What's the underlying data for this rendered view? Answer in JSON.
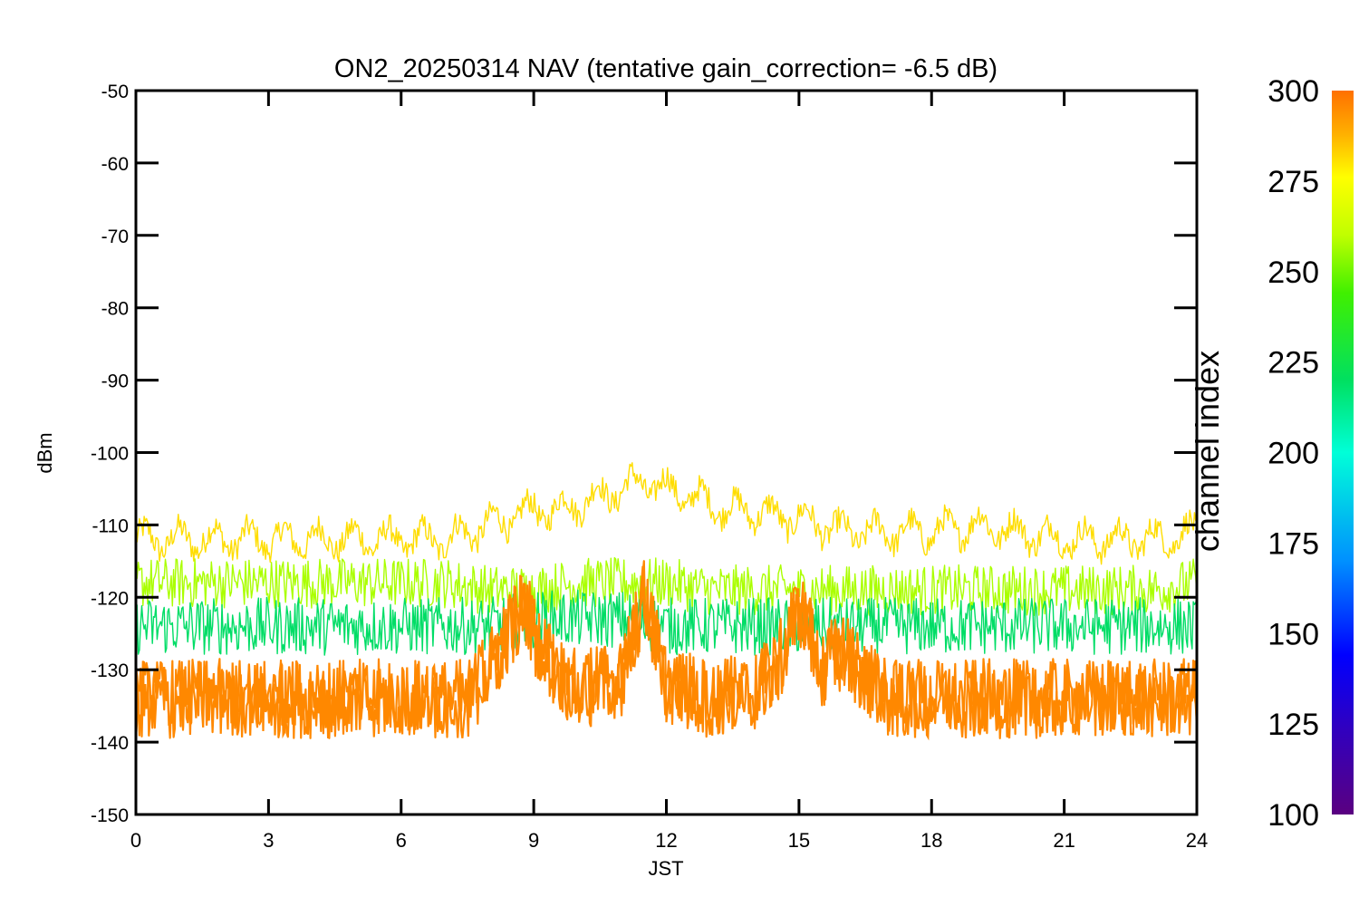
{
  "chart_data": {
    "type": "line",
    "title": "ON2_20250314 NAV (tentative gain_correction= -6.5 dB)",
    "xlabel": "JST",
    "ylabel": "dBm",
    "xlim": [
      0,
      24
    ],
    "ylim": [
      -150,
      -50
    ],
    "xticks": [
      0,
      3,
      6,
      9,
      12,
      15,
      18,
      21,
      24
    ],
    "yticks": [
      -50,
      -60,
      -70,
      -80,
      -90,
      -100,
      -110,
      -120,
      -130,
      -140,
      -150
    ],
    "grid": false,
    "colorbar": {
      "label": "channel index",
      "range": [
        100,
        300
      ],
      "ticks": [
        300,
        275,
        250,
        225,
        200,
        175,
        150,
        125,
        100
      ],
      "colormap": "rainbow"
    },
    "series": [
      {
        "channel_index": 270,
        "color": "#ffdd00",
        "x": [
          0,
          1,
          2,
          3,
          4,
          5,
          6,
          7,
          7.5,
          8,
          8.5,
          9,
          9.5,
          10,
          10.5,
          11,
          11.5,
          12,
          12.5,
          13,
          13.5,
          14,
          14.5,
          15,
          15.5,
          16,
          16.5,
          17,
          18,
          19,
          20,
          21,
          22,
          23,
          24
        ],
        "values": [
          -112,
          -112,
          -112,
          -112,
          -112,
          -112,
          -112,
          -112,
          -111,
          -110,
          -109,
          -108,
          -108,
          -107,
          -106,
          -105,
          -104,
          -105,
          -106,
          -107,
          -108,
          -108,
          -109,
          -109,
          -110,
          -111,
          -111,
          -111,
          -111,
          -110,
          -111,
          -112,
          -112,
          -112,
          -111
        ]
      },
      {
        "channel_index": 255,
        "color": "#aaff00",
        "x": [
          0,
          2,
          4,
          6,
          7,
          8,
          9,
          10,
          11,
          12,
          13,
          14,
          15,
          16,
          17,
          18,
          19,
          20,
          21,
          22,
          23,
          24
        ],
        "values": [
          -118,
          -118,
          -118,
          -118,
          -118,
          -119,
          -119,
          -118,
          -118,
          -118,
          -119,
          -119,
          -119,
          -119,
          -119,
          -119,
          -119,
          -119,
          -119,
          -119,
          -119,
          -118
        ]
      },
      {
        "channel_index": 215,
        "color": "#00dd66",
        "x": [
          0,
          2,
          4,
          6,
          7,
          8,
          9,
          10,
          11,
          12,
          13,
          14,
          15,
          16,
          17,
          18,
          19,
          20,
          21,
          22,
          23,
          24
        ],
        "values": [
          -124,
          -124,
          -124,
          -124,
          -124,
          -124,
          -123,
          -123,
          -123,
          -124,
          -124,
          -124,
          -124,
          -124,
          -124,
          -124,
          -124,
          -124,
          -124,
          -124,
          -124,
          -124
        ]
      },
      {
        "channel_index": 290,
        "color": "#ff8800",
        "x": [
          0,
          2,
          4,
          6,
          7,
          7.5,
          8,
          8.5,
          8.8,
          9,
          9.5,
          10,
          11,
          11.5,
          12,
          13,
          14,
          14.5,
          15,
          15.5,
          16,
          16.5,
          17,
          18,
          19,
          20,
          21,
          22,
          23,
          24
        ],
        "values": [
          -134,
          -134,
          -134,
          -134,
          -134,
          -134,
          -130,
          -124,
          -121,
          -125,
          -130,
          -133,
          -131,
          -120,
          -132,
          -134,
          -133,
          -130,
          -121,
          -130,
          -127,
          -131,
          -134,
          -134,
          -134,
          -134,
          -134,
          -134,
          -134,
          -134
        ]
      }
    ]
  }
}
